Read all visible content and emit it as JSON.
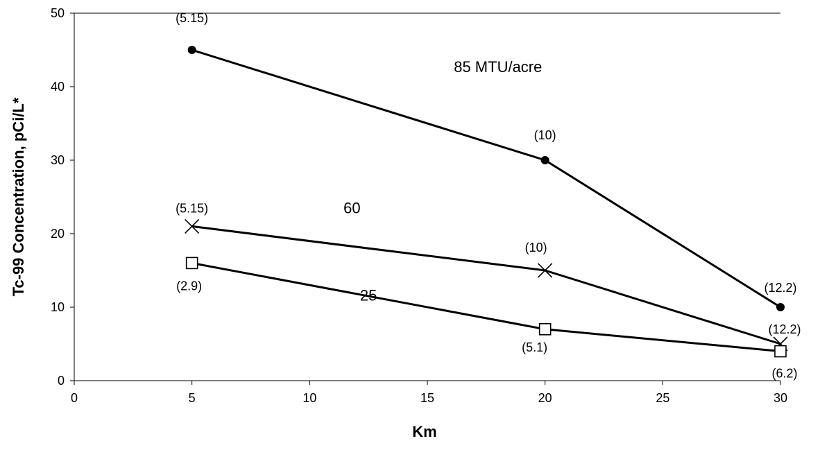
{
  "chart_data": {
    "type": "line",
    "xlabel": "Km",
    "ylabel": "Tc-99 Concentration, pCi/L*",
    "xlim": [
      0,
      30
    ],
    "ylim": [
      0,
      50
    ],
    "xticks": [
      0,
      5,
      10,
      15,
      20,
      25,
      30
    ],
    "yticks": [
      0,
      10,
      20,
      30,
      40,
      50
    ],
    "grid": false,
    "legend": "none",
    "series": [
      {
        "key": "85",
        "name": "85 MTU/acre",
        "marker": "circle",
        "x": [
          5,
          20,
          30
        ],
        "y": [
          45,
          30,
          10
        ],
        "point_labels": [
          "(5.15)",
          "(10)",
          "(12.2)"
        ]
      },
      {
        "key": "60",
        "name": "60",
        "marker": "x",
        "x": [
          5,
          20,
          30
        ],
        "y": [
          21,
          15,
          5
        ],
        "point_labels": [
          "(5.15)",
          "(10)",
          "(12.2)"
        ]
      },
      {
        "key": "25",
        "name": "25",
        "marker": "square",
        "x": [
          5,
          20,
          30
        ],
        "y": [
          16,
          7,
          4
        ],
        "point_labels": [
          "(2.9)",
          "(5.1)",
          "(6.2)"
        ]
      }
    ]
  }
}
